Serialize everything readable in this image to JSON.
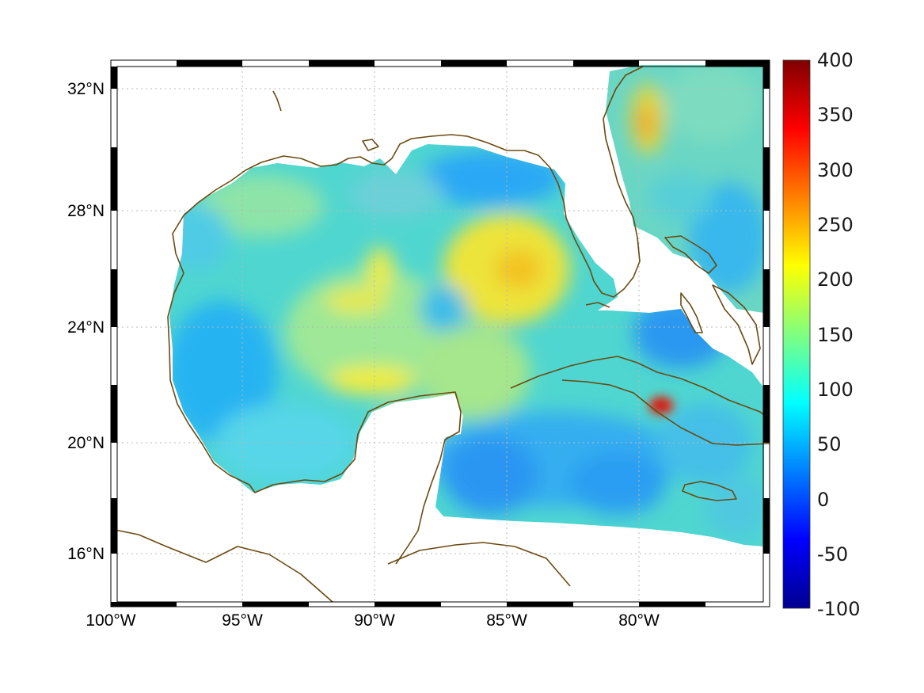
{
  "map": {
    "colorbar": {
      "ticks": [
        "400",
        "350",
        "300",
        "250",
        "200",
        "150",
        "100",
        "50",
        "0",
        "-50",
        "-100"
      ],
      "colormap": "jet",
      "min": -100,
      "max": 400
    },
    "x_ticks": [
      "100°W",
      "95°W",
      "90°W",
      "85°W",
      "80°W"
    ],
    "y_ticks": [
      "32°N",
      "28°N",
      "24°N",
      "20°N",
      "16°N"
    ],
    "extent": {
      "lon_min": -100,
      "lon_max": -75,
      "lat_min": 14.3,
      "lat_max": 33
    },
    "colors": {
      "coastline": "#6b4a12",
      "land_background": "#ffffff"
    }
  }
}
